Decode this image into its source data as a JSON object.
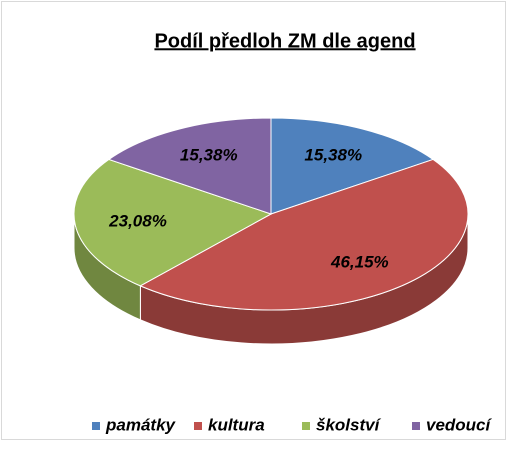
{
  "chart_data": {
    "type": "pie3d",
    "title": "Podíl předloh ZM dle agend",
    "categories": [
      "památky",
      "kultura",
      "školství",
      "vedoucí"
    ],
    "values": [
      15.38,
      46.15,
      23.08,
      15.38
    ],
    "value_labels": [
      "15,38%",
      "46,15%",
      "23,08%",
      "15,38%"
    ],
    "colors": [
      "#4f81bd",
      "#c0504d",
      "#9bbb59",
      "#8064a2"
    ],
    "legend": "bottom"
  }
}
